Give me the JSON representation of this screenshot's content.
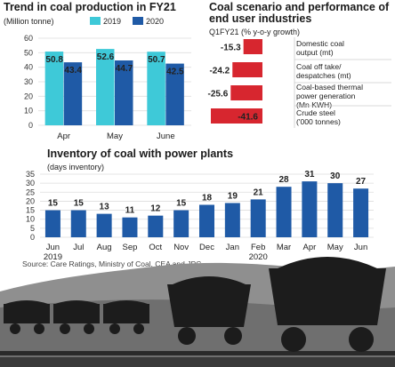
{
  "colors": {
    "color_2019": "#3ec9d8",
    "color_2020": "#1f5aa6",
    "negative": "#d7262f",
    "inventory_bar": "#1f5aa6",
    "grid": "#dddddd",
    "illustration_dark": "#1c1c1c",
    "illustration_gray": "#8f8f8f"
  },
  "source": "Source: Care Ratings, Ministry of Coal, CEA and JPC",
  "chart_data": [
    {
      "type": "bar",
      "title": "Trend in coal production in FY21",
      "ylabel": "(Million tonne)",
      "categories": [
        "Apr",
        "May",
        "June"
      ],
      "series": [
        {
          "name": "2019",
          "values": [
            50.8,
            52.6,
            50.7
          ]
        },
        {
          "name": "2020",
          "values": [
            43.4,
            44.7,
            42.5
          ]
        }
      ],
      "ylim": [
        0,
        60
      ],
      "yticks": [
        0,
        10,
        20,
        30,
        40,
        50,
        60
      ],
      "grid": true,
      "legend": "top"
    },
    {
      "type": "bar",
      "orientation": "horizontal",
      "title_lines": [
        "Coal scenario and performance of",
        "end user industries"
      ],
      "subtitle": "Q1FY21 (% y-o-y growth)",
      "categories": [
        [
          "Domestic coal",
          "output (mt)"
        ],
        [
          "Coal off take/",
          "despatches (mt)"
        ],
        [
          "Coal-based thermal",
          "power generation",
          "(Mn KWH)"
        ],
        [
          "Crude steel",
          "('000 tonnes)"
        ]
      ],
      "values": [
        -15.3,
        -24.2,
        -25.6,
        -41.6
      ],
      "value_labels": [
        "-15.3",
        "-24.2",
        "-25.6",
        "-41.6"
      ]
    },
    {
      "type": "bar",
      "title": "Inventory of coal with power plants",
      "ylabel": "(days inventory)",
      "categories": [
        "Jun",
        "Jul",
        "Aug",
        "Sep",
        "Oct",
        "Nov",
        "Dec",
        "Jan",
        "Feb",
        "Mar",
        "Apr",
        "May",
        "Jun"
      ],
      "year_labels": [
        "2019",
        "",
        "",
        "",
        "",
        "",
        "",
        "",
        "2020",
        "",
        "",
        "",
        ""
      ],
      "values": [
        15,
        15,
        13,
        11,
        12,
        15,
        18,
        19,
        21,
        28,
        31,
        30,
        27
      ],
      "ylim": [
        0,
        35
      ],
      "yticks": [
        0,
        5,
        10,
        15,
        20,
        25,
        30,
        35
      ],
      "grid": true
    }
  ]
}
